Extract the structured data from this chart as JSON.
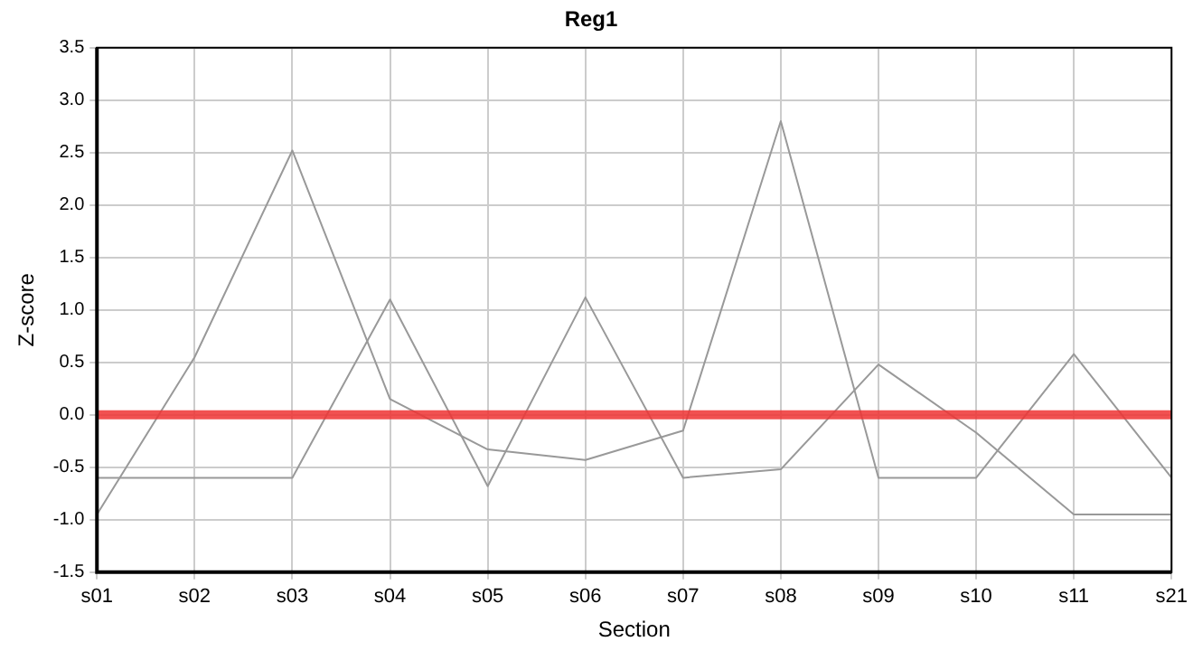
{
  "chart_data": {
    "type": "line",
    "title": "Reg1",
    "xlabel": "Section",
    "ylabel": "Z-score",
    "categories": [
      "s01",
      "s02",
      "s03",
      "s04",
      "s05",
      "s06",
      "s07",
      "s08",
      "s09",
      "s10",
      "s11",
      "s21"
    ],
    "series": [
      {
        "color": "#999999",
        "values": [
          -0.95,
          0.55,
          2.52,
          0.15,
          -0.33,
          -0.43,
          -0.15,
          2.8,
          -0.6,
          -0.6,
          0.58,
          -0.6
        ]
      },
      {
        "color": "#999999",
        "values": [
          -0.6,
          -0.6,
          -0.6,
          1.1,
          -0.68,
          1.12,
          -0.6,
          -0.52,
          0.48,
          -0.17,
          -0.95,
          -0.95
        ]
      }
    ],
    "ylim": [
      -1.5,
      3.5
    ],
    "yticks": [
      {
        "value": -1.5,
        "label": "-1.5"
      },
      {
        "value": -1,
        "label": "-1.0"
      },
      {
        "value": -0.5,
        "label": "-0.5"
      },
      {
        "value": 0,
        "label": "0.0"
      },
      {
        "value": 0.5,
        "label": "0.5"
      },
      {
        "value": 1,
        "label": "1.0"
      },
      {
        "value": 1.5,
        "label": "1.5"
      },
      {
        "value": 2,
        "label": "2.0"
      },
      {
        "value": 2.5,
        "label": "2.5"
      },
      {
        "value": 3,
        "label": "3.0"
      },
      {
        "value": 3.5,
        "label": "3.5"
      }
    ],
    "ref_lines": [
      {
        "axis": "y",
        "value": 0,
        "color": "#ee3333"
      }
    ],
    "grid": true,
    "legend": false,
    "marker": "none",
    "line_style": "solid"
  }
}
